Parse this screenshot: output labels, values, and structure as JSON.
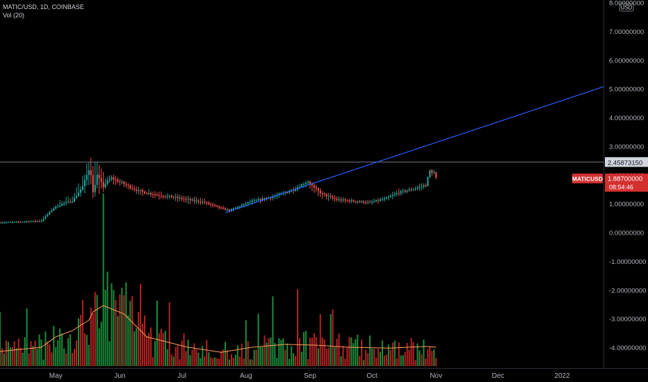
{
  "header": {
    "ticker_line": "MATIC/USD, 1D, COINBASE",
    "volume_legend": "Vol (20)"
  },
  "currency": "USD",
  "colors": {
    "background": "#000000",
    "up": "#26a69a",
    "down": "#ef5350",
    "vol_up": "#1b8a3a",
    "vol_down": "#b22222",
    "vol_ma": "#ff9e57",
    "trendline": "#2962ff",
    "hline": "#787b86",
    "price_tag": "#d32f2f",
    "axis_text": "#b2b5be"
  },
  "price_labels": {
    "hline_value": "2.45873150",
    "last_symbol": "MATICUSD",
    "last_price": "1.88700000",
    "countdown": "08:54:46"
  },
  "chart_data": {
    "type": "candlestick",
    "title": "MATIC/USD, 1D, COINBASE",
    "y_axis": {
      "ylim": [
        -4.3,
        8.0
      ],
      "ticks": [
        "8.00000000",
        "7.00000000",
        "6.00000000",
        "5.00000000",
        "4.00000000",
        "3.00000000",
        "2.00000000",
        "1.00000000",
        "0.00000000",
        "-1.00000000",
        "-2.00000000",
        "-3.00000000",
        "-4.00000000"
      ],
      "tick_values": [
        8,
        7,
        6,
        5,
        4,
        3,
        2,
        1,
        0,
        -1,
        -2,
        -3,
        -4
      ]
    },
    "x_axis": {
      "range": [
        "2021-04-04",
        "2022-01-21"
      ],
      "ticks": [
        {
          "label": "May",
          "date": "2021-05-01"
        },
        {
          "label": "Jun",
          "date": "2021-06-01"
        },
        {
          "label": "Jul",
          "date": "2021-07-01"
        },
        {
          "label": "Aug",
          "date": "2021-08-01"
        },
        {
          "label": "Sep",
          "date": "2021-09-01"
        },
        {
          "label": "Oct",
          "date": "2021-10-01"
        },
        {
          "label": "Nov",
          "date": "2021-11-01"
        },
        {
          "label": "Dec",
          "date": "2021-12-01"
        },
        {
          "label": "2022",
          "date": "2022-01-01"
        }
      ]
    },
    "price_key_points": {
      "dates": [
        "2021-04-04",
        "2021-04-14",
        "2021-04-24",
        "2021-04-30",
        "2021-05-04",
        "2021-05-09",
        "2021-05-14",
        "2021-05-17",
        "2021-05-18",
        "2021-05-19",
        "2021-05-21",
        "2021-05-24",
        "2021-05-26",
        "2021-05-28",
        "2021-06-03",
        "2021-06-10",
        "2021-06-20",
        "2021-06-26",
        "2021-07-04",
        "2021-07-12",
        "2021-07-20",
        "2021-07-24",
        "2021-08-04",
        "2021-08-14",
        "2021-08-24",
        "2021-08-31",
        "2021-09-03",
        "2021-09-07",
        "2021-09-14",
        "2021-09-22",
        "2021-09-30",
        "2021-10-08",
        "2021-10-14",
        "2021-10-20",
        "2021-10-27",
        "2021-10-29",
        "2021-10-31",
        "2021-11-01"
      ],
      "close": [
        0.35,
        0.38,
        0.4,
        0.85,
        1.0,
        1.1,
        1.6,
        2.2,
        2.05,
        1.4,
        2.0,
        1.6,
        1.8,
        1.9,
        1.7,
        1.45,
        1.3,
        1.25,
        1.15,
        1.05,
        0.85,
        0.78,
        1.1,
        1.25,
        1.5,
        1.8,
        1.55,
        1.35,
        1.15,
        1.1,
        1.05,
        1.2,
        1.4,
        1.5,
        1.65,
        2.15,
        2.1,
        1.887
      ],
      "high": [
        0.4,
        0.42,
        0.5,
        0.95,
        1.2,
        1.35,
        2.0,
        2.8,
        2.7,
        2.5,
        2.5,
        2.2,
        2.0,
        2.05,
        1.85,
        1.6,
        1.45,
        1.4,
        1.3,
        1.2,
        1.0,
        0.82,
        1.2,
        1.35,
        1.6,
        1.85,
        1.75,
        1.5,
        1.3,
        1.2,
        1.15,
        1.3,
        1.55,
        1.6,
        1.8,
        2.25,
        2.2,
        2.05
      ],
      "low": [
        0.3,
        0.33,
        0.35,
        0.75,
        0.9,
        1.0,
        1.3,
        1.5,
        1.6,
        0.75,
        1.3,
        1.4,
        1.6,
        1.7,
        1.55,
        1.3,
        1.15,
        1.1,
        1.0,
        0.95,
        0.75,
        0.68,
        0.95,
        1.1,
        1.35,
        1.6,
        1.35,
        1.15,
        1.0,
        0.98,
        0.95,
        1.05,
        1.25,
        1.4,
        1.5,
        1.85,
        1.9,
        1.85
      ]
    },
    "volume_key_points": {
      "dates": [
        "2021-04-04",
        "2021-04-24",
        "2021-05-01",
        "2021-05-09",
        "2021-05-17",
        "2021-05-19",
        "2021-05-24",
        "2021-06-03",
        "2021-06-14",
        "2021-07-04",
        "2021-07-20",
        "2021-08-04",
        "2021-08-20",
        "2021-09-04",
        "2021-09-20",
        "2021-10-10",
        "2021-10-27",
        "2021-11-01"
      ],
      "volume_ma": [
        0.35,
        0.45,
        0.7,
        0.85,
        1.1,
        1.3,
        1.45,
        1.25,
        0.7,
        0.45,
        0.33,
        0.45,
        0.52,
        0.5,
        0.45,
        0.43,
        0.47,
        0.45
      ]
    },
    "hline": 2.4587315,
    "trendline": {
      "from": {
        "date": "2021-07-22",
        "value": 0.7
      },
      "to": {
        "date": "2022-01-21",
        "value": 5.08
      }
    },
    "last_price": 1.887
  }
}
